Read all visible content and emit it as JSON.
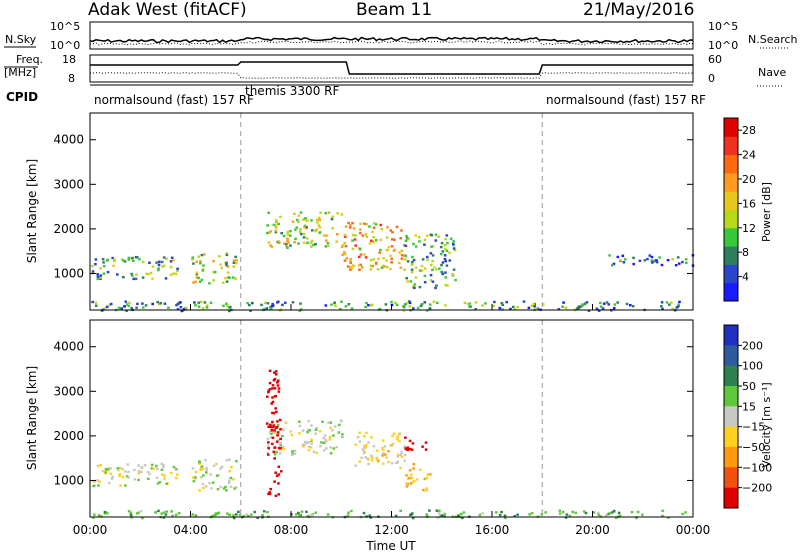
{
  "header": {
    "title": "Adak West (fitACF)",
    "beam": "Beam 11",
    "date": "21/May/2016"
  },
  "top_panels": {
    "nsky": {
      "label": "N.Sky",
      "ticks": [
        "10^5",
        "10^0"
      ],
      "right_label": "N.Search",
      "right_ticks": [
        "10^5",
        "10^0"
      ]
    },
    "freq": {
      "label_line1": "Freq.",
      "label_line2": "[MHz]",
      "ticks": [
        "18",
        "8"
      ],
      "right_label": "Nave",
      "right_ticks": [
        "60",
        "0"
      ]
    },
    "cpid": {
      "label": "CPID",
      "segments": [
        {
          "name": "normalsound (fast) 157 RF",
          "start_hour": 0,
          "end_hour": 6
        },
        {
          "name": "themis 3300 RF",
          "start_hour": 6,
          "end_hour": 18
        },
        {
          "name": "normalsound (fast) 157 RF",
          "start_hour": 18,
          "end_hour": 24
        }
      ]
    }
  },
  "chart_data": [
    {
      "type": "heatmap",
      "title": "",
      "ylabel": "Slant Range [km]",
      "xlabel": "",
      "ylim": [
        180,
        4600
      ],
      "xlim": [
        0,
        24
      ],
      "y_ticks": [
        1000,
        2000,
        3000,
        4000
      ],
      "colorbar": {
        "label": "Power [dB]",
        "ticks": [
          4,
          8,
          12,
          16,
          20,
          24,
          28
        ],
        "range": [
          0,
          30
        ],
        "colors": [
          "#1a1aff",
          "#2a45c8",
          "#2f7f5f",
          "#39c83c",
          "#b8d81c",
          "#e8c820",
          "#ff9b20",
          "#ff6a10",
          "#f03020",
          "#e00000"
        ]
      },
      "regions": [
        {
          "hours": [
            0.0,
            3.5
          ],
          "km": [
            900,
            1400
          ],
          "power": 10
        },
        {
          "hours": [
            4.0,
            5.8
          ],
          "km": [
            800,
            1500
          ],
          "power": 14
        },
        {
          "hours": [
            7.0,
            10.0
          ],
          "km": [
            1600,
            2400
          ],
          "power": 14
        },
        {
          "hours": [
            10.0,
            12.5
          ],
          "km": [
            1100,
            2200
          ],
          "power": 18
        },
        {
          "hours": [
            12.5,
            14.5
          ],
          "km": [
            700,
            1900
          ],
          "power": 10
        },
        {
          "hours": [
            0.0,
            24.0
          ],
          "km": [
            180,
            400
          ],
          "power": 8
        },
        {
          "hours": [
            20.5,
            24.0
          ],
          "km": [
            1200,
            1450
          ],
          "power": 6
        }
      ]
    },
    {
      "type": "heatmap",
      "title": "",
      "ylabel": "Slant Range [km]",
      "xlabel": "Time UT",
      "ylim": [
        180,
        4600
      ],
      "xlim": [
        0,
        24
      ],
      "y_ticks": [
        1000,
        2000,
        3000,
        4000
      ],
      "x_ticks": [
        "00:00",
        "04:00",
        "08:00",
        "12:00",
        "16:00",
        "20:00",
        "00:00"
      ],
      "colorbar": {
        "label": "Velocity [m s⁻¹]",
        "ticks": [
          "200",
          "100",
          "50",
          "15",
          "−15",
          "−50",
          "−100",
          "−200"
        ],
        "colors": [
          "#1f2fbf",
          "#2e5aa0",
          "#2f8050",
          "#5ec83a",
          "#c8c8c4",
          "#ffd020",
          "#ff9a10",
          "#f05010",
          "#e00000"
        ]
      },
      "regions": [
        {
          "hours": [
            0.0,
            3.5
          ],
          "km": [
            900,
            1400
          ],
          "velocity": 0
        },
        {
          "hours": [
            4.0,
            5.8
          ],
          "km": [
            800,
            1500
          ],
          "velocity": 0
        },
        {
          "hours": [
            7.0,
            10.0
          ],
          "km": [
            1600,
            2400
          ],
          "velocity": 0
        },
        {
          "hours": [
            10.5,
            12.5
          ],
          "km": [
            1300,
            2100
          ],
          "velocity": -25
        },
        {
          "hours": [
            12.5,
            13.5
          ],
          "km": [
            1700,
            2000
          ],
          "velocity": -250
        },
        {
          "hours": [
            12.5,
            13.5
          ],
          "km": [
            800,
            1400
          ],
          "velocity": -60
        },
        {
          "hours": [
            7.0,
            7.6
          ],
          "km": [
            600,
            3500
          ],
          "velocity": -250
        },
        {
          "hours": [
            0.0,
            24.0
          ],
          "km": [
            180,
            350
          ],
          "velocity": 40
        }
      ]
    }
  ]
}
